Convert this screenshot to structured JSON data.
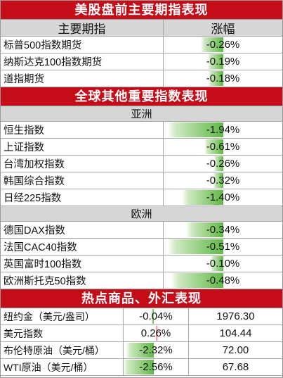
{
  "us_section": {
    "title": "美股盘前主要期指表现",
    "header": {
      "name": "主要期指",
      "change": "涨幅"
    },
    "rows": [
      {
        "name": "标普500指数期货",
        "change": "-0.26%",
        "bar": 0.4
      },
      {
        "name": "纳斯达克100指数期货",
        "change": "-0.19%",
        "bar": 0.28
      },
      {
        "name": "道指期货",
        "change": "-0.18%",
        "bar": 0.26
      }
    ]
  },
  "global_section": {
    "title": "全球其他重要指数表现",
    "asia": {
      "label": "亚洲",
      "rows": [
        {
          "name": "恒生指数",
          "change": "-1.94%",
          "bar": 1.0
        },
        {
          "name": "上证指数",
          "change": "-0.61%",
          "bar": 0.34
        },
        {
          "name": "台湾加权指数",
          "change": "-0.26%",
          "bar": 0.16
        },
        {
          "name": "韩国综合指数",
          "change": "-0.32%",
          "bar": 0.18
        },
        {
          "name": "日经225指数",
          "change": "-1.40%",
          "bar": 0.74
        }
      ]
    },
    "europe": {
      "label": "欧洲",
      "rows": [
        {
          "name": "德国DAX指数",
          "change": "-0.34%",
          "bar": 0.66
        },
        {
          "name": "法国CAC40指数",
          "change": "-0.51%",
          "bar": 1.0
        },
        {
          "name": "英国富时100指数",
          "change": "-0.10%",
          "bar": 0.22
        },
        {
          "name": "欧洲斯托克50指数",
          "change": "-0.48%",
          "bar": 0.94
        }
      ]
    }
  },
  "commodity_section": {
    "title": "热点商品、外汇表现",
    "rows": [
      {
        "name": "纽约金（美元/盎司）",
        "change": "-0.04%",
        "price": "1976.30",
        "bar": 0.02,
        "dir": "down"
      },
      {
        "name": "美元指数",
        "change": "0.26%",
        "price": "104.44",
        "bar": 0.08,
        "dir": "up"
      },
      {
        "name": "布伦特原油（美元/桶）",
        "change": "-2.32%",
        "price": "72.00",
        "bar": 0.9,
        "dir": "down"
      },
      {
        "name": "WTI原油（美元/桶）",
        "change": "-2.56%",
        "price": "67.68",
        "bar": 1.0,
        "dir": "down"
      }
    ]
  },
  "colors": {
    "banner": "#c50d1a",
    "header": "#d6d6d6",
    "bar_green": "#5fb845",
    "bar_red": "#f08a8a"
  }
}
